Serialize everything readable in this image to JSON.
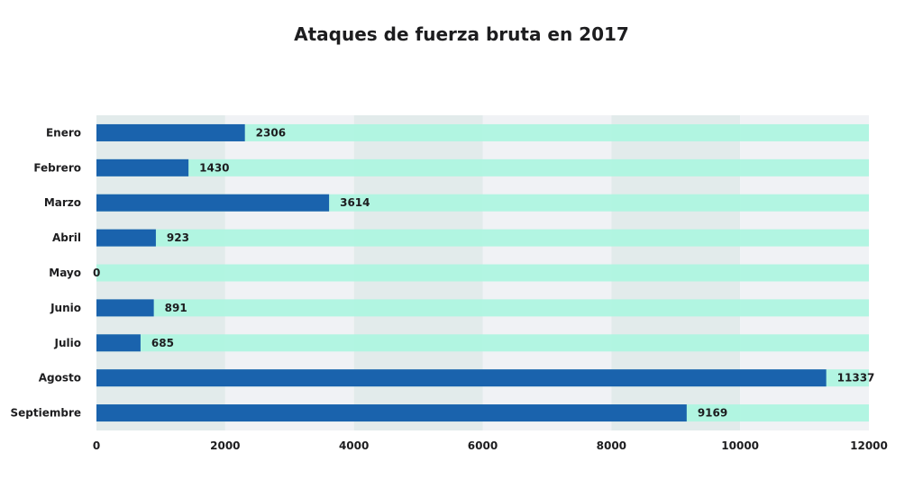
{
  "chart_data": {
    "type": "bar",
    "orientation": "horizontal",
    "title": "Ataques de fuerza bruta en 2017",
    "xlabel": "",
    "ylabel": "",
    "categories": [
      "Enero",
      "Febrero",
      "Marzo",
      "Abril",
      "Mayo",
      "Junio",
      "Julio",
      "Agosto",
      "Septiembre"
    ],
    "values": [
      2306,
      1430,
      3614,
      923,
      0,
      891,
      685,
      11337,
      9169
    ],
    "xlim": [
      0,
      12000
    ],
    "xticks": [
      0,
      2000,
      4000,
      6000,
      8000,
      10000,
      12000
    ],
    "xtick_labels": [
      "0",
      "2000",
      "4000",
      "6000",
      "8000",
      "10000",
      "12000"
    ],
    "grid": "alternating vertical bands",
    "legend": "none",
    "data_labels": true,
    "colors": {
      "bar": "#1a63ad",
      "track": "#adf5df",
      "band_dark": "#e2ebeb",
      "band_light": "#f0f2f5",
      "text": "#1d1d1f"
    }
  }
}
